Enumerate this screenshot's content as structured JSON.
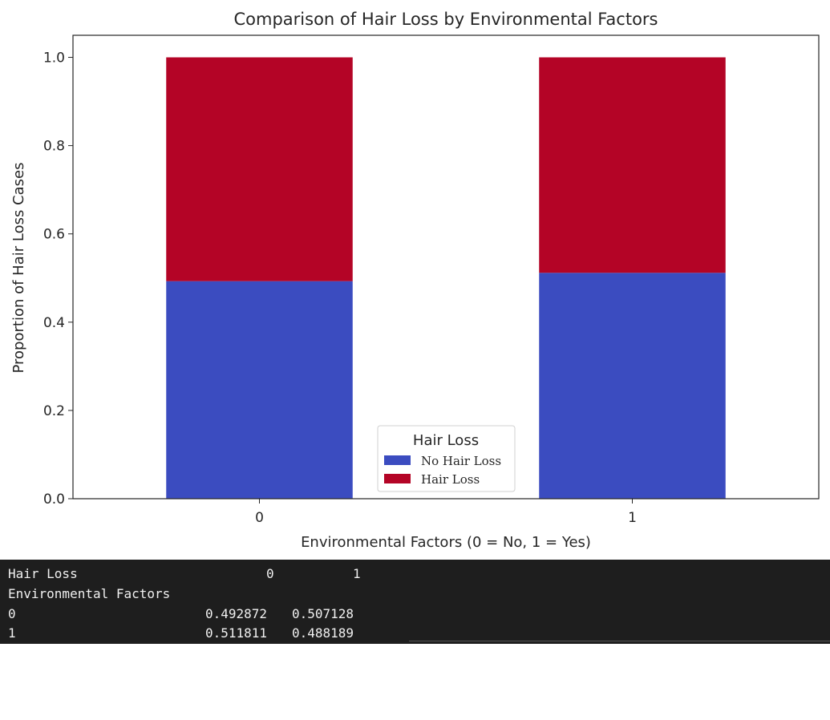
{
  "chart_data": {
    "type": "bar",
    "stacked": true,
    "title": "Comparison of Hair Loss by Environmental Factors",
    "xlabel": "Environmental Factors (0 = No, 1 = Yes)",
    "ylabel": "Proportion of Hair Loss Cases",
    "categories": [
      "0",
      "1"
    ],
    "series": [
      {
        "name": "No Hair Loss",
        "color": "#3b4cc0",
        "values": [
          0.492872,
          0.511811
        ]
      },
      {
        "name": "Hair Loss",
        "color": "#b40426",
        "values": [
          0.507128,
          0.488189
        ]
      }
    ],
    "ylim": [
      0,
      1.05
    ],
    "yticks": [
      0.0,
      0.2,
      0.4,
      0.6,
      0.8,
      1.0
    ],
    "ytick_labels": [
      "0.0",
      "0.2",
      "0.4",
      "0.6",
      "0.8",
      "1.0"
    ],
    "legend": {
      "title": "Hair Loss",
      "placement": "lower center"
    },
    "grid": false
  },
  "console": {
    "header_row": {
      "label": "Hair Loss",
      "col0": "0",
      "col1": "1"
    },
    "index_name": "Environmental Factors",
    "rows": [
      {
        "index": "0",
        "col0": "0.492872",
        "col1": "0.507128"
      },
      {
        "index": "1",
        "col0": "0.511811",
        "col1": "0.488189"
      }
    ]
  }
}
